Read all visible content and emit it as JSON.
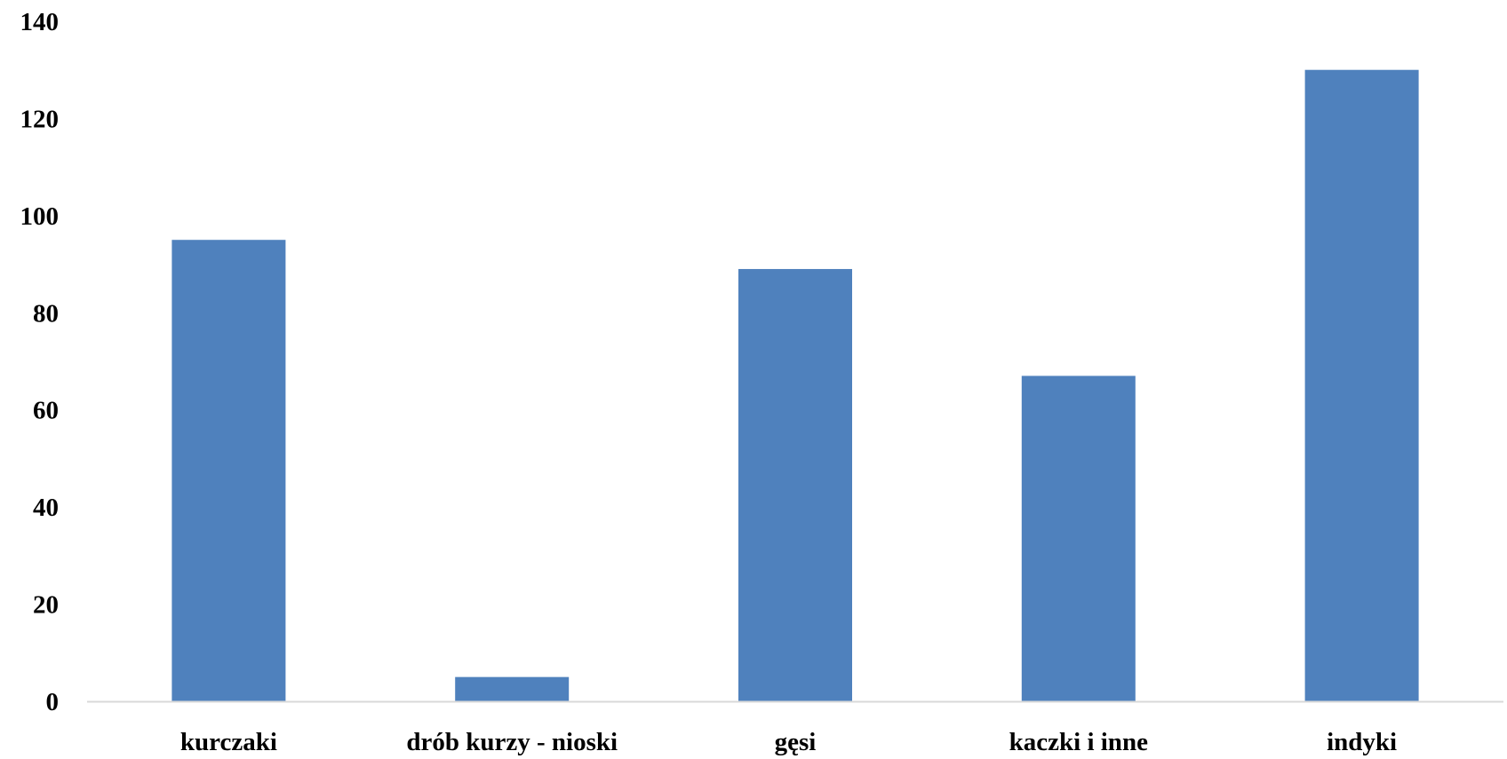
{
  "chart_data": {
    "type": "bar",
    "title": "",
    "xlabel": "",
    "ylabel": "",
    "categories": [
      "kurczaki",
      "drób kurzy - nioski",
      "gęsi",
      "kaczki i inne",
      "indyki"
    ],
    "values": [
      95,
      5,
      89,
      67,
      130
    ],
    "ylim": [
      0,
      140
    ],
    "yticks": [
      "0",
      "20",
      "40",
      "60",
      "80",
      "100",
      "120",
      "140"
    ],
    "grid": false,
    "legend": "none",
    "colors": {
      "bar": "#4f81bd",
      "axis": "#d9d9d9",
      "text": "#000000"
    }
  }
}
